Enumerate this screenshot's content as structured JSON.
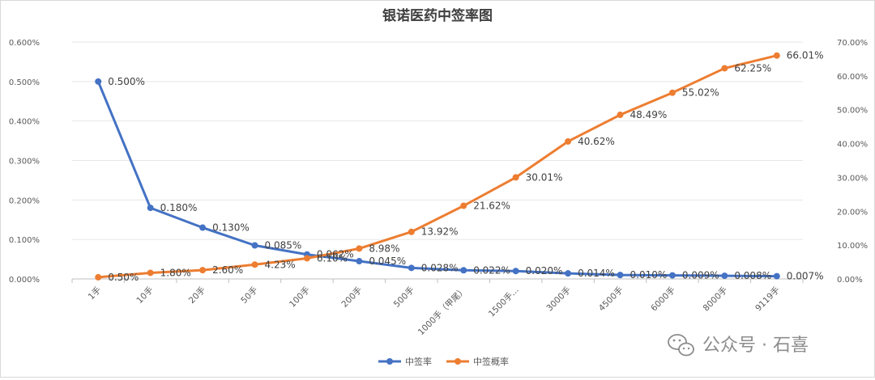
{
  "chart_data": {
    "type": "line",
    "title": "银诺医药中签率图",
    "categories": [
      "1手",
      "10手",
      "20手",
      "50手",
      "100手",
      "200手",
      "500手",
      "1000手（甲尾）",
      "1500手...",
      "3000手",
      "4500手",
      "6000手",
      "8000手",
      "9119手"
    ],
    "y_left": {
      "ticks": [
        "0.000%",
        "0.100%",
        "0.200%",
        "0.300%",
        "0.400%",
        "0.500%",
        "0.600%"
      ],
      "ylim": [
        0,
        0.6
      ]
    },
    "y_right": {
      "ticks": [
        "0.00%",
        "10.00%",
        "20.00%",
        "30.00%",
        "40.00%",
        "50.00%",
        "60.00%",
        "70.00%"
      ],
      "ylim": [
        0,
        70
      ]
    },
    "series": [
      {
        "name": "中签率",
        "axis": "left",
        "color": "#4472c4",
        "values": [
          0.5,
          0.18,
          0.13,
          0.085,
          0.062,
          0.045,
          0.028,
          0.022,
          0.02,
          0.014,
          0.01,
          0.009,
          0.008,
          0.007
        ],
        "labels": [
          "0.500%",
          "0.180%",
          "0.130%",
          "0.085%",
          "0.062%",
          "0.045%",
          "0.028%",
          "0.022%",
          "0.020%",
          "0.014%",
          "0.010%",
          "0.009%",
          "0.008%",
          "0.007%"
        ]
      },
      {
        "name": "中签概率",
        "axis": "right",
        "color": "#ed7d31",
        "values": [
          0.5,
          1.8,
          2.6,
          4.23,
          6.1,
          8.98,
          13.92,
          21.62,
          30.01,
          40.62,
          48.49,
          55.02,
          62.25,
          66.01
        ],
        "labels": [
          "0.50%",
          "1.80%",
          "2.60%",
          "4.23%",
          "6.10%",
          "8.98%",
          "13.92%",
          "21.62%",
          "30.01%",
          "40.62%",
          "48.49%",
          "55.02%",
          "62.25%",
          "66.01%"
        ]
      }
    ],
    "grid": true,
    "legend_position": "bottom"
  },
  "watermark": {
    "text": "公众号 · 石喜",
    "icon": "wechat-icon"
  }
}
